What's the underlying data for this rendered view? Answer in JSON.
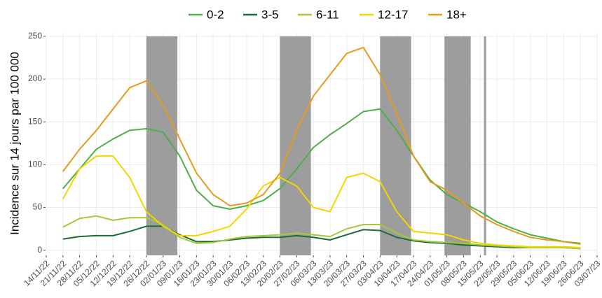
{
  "chart_data": {
    "type": "line",
    "y_label": "Incidence sur 14 jours par 100 000",
    "x": [
      "21/11/22",
      "28/11/22",
      "05/12/22",
      "12/12/22",
      "19/12/22",
      "26/12/22",
      "02/01/23",
      "09/01/23",
      "16/01/23",
      "23/01/23",
      "30/01/23",
      "06/02/23",
      "13/02/23",
      "20/02/23",
      "27/02/23",
      "06/03/23",
      "13/03/23",
      "20/03/23",
      "27/03/23",
      "03/04/23",
      "10/04/23",
      "17/04/23",
      "24/04/23",
      "01/05/23",
      "08/05/23",
      "15/05/23",
      "22/05/23",
      "29/05/23",
      "05/06/23",
      "12/06/23",
      "19/06/23",
      "26/06/23"
    ],
    "series": [
      {
        "name": "0-2",
        "color": "#4daf4a",
        "values": [
          72,
          95,
          118,
          130,
          140,
          142,
          138,
          110,
          70,
          52,
          48,
          52,
          58,
          72,
          95,
          120,
          135,
          148,
          162,
          165,
          140,
          110,
          82,
          65,
          55,
          45,
          33,
          25,
          18,
          14,
          10,
          8
        ]
      },
      {
        "name": "3-5",
        "color": "#1b6b3a",
        "values": [
          13,
          16,
          17,
          17,
          22,
          28,
          28,
          18,
          10,
          10,
          12,
          14,
          15,
          15,
          17,
          15,
          12,
          18,
          24,
          23,
          15,
          11,
          9,
          8,
          6,
          5,
          4,
          3,
          3,
          3,
          3,
          2
        ]
      },
      {
        "name": "6-11",
        "color": "#a6c93a",
        "values": [
          27,
          37,
          40,
          35,
          38,
          38,
          30,
          15,
          8,
          9,
          13,
          16,
          17,
          18,
          20,
          18,
          16,
          25,
          30,
          30,
          20,
          12,
          10,
          9,
          8,
          6,
          5,
          4,
          3,
          3,
          3,
          2
        ]
      },
      {
        "name": "12-17",
        "color": "#f2d600",
        "values": [
          60,
          95,
          110,
          110,
          85,
          45,
          28,
          17,
          17,
          22,
          28,
          48,
          75,
          85,
          75,
          50,
          45,
          85,
          90,
          80,
          45,
          22,
          20,
          18,
          12,
          8,
          6,
          5,
          4,
          4,
          4,
          3
        ]
      },
      {
        "name": "18+",
        "color": "#e69a1e",
        "values": [
          92,
          118,
          140,
          165,
          190,
          198,
          170,
          130,
          90,
          65,
          52,
          55,
          65,
          90,
          140,
          180,
          205,
          230,
          237,
          205,
          160,
          110,
          80,
          70,
          55,
          40,
          30,
          22,
          15,
          12,
          10,
          7
        ]
      }
    ],
    "xlim": [
      "14/11/22",
      "03/07/23"
    ],
    "xticks": [
      "14/11/22",
      "21/11/22",
      "28/11/22",
      "05/12/22",
      "12/12/22",
      "19/12/22",
      "26/12/22",
      "02/01/23",
      "09/01/23",
      "16/01/23",
      "23/01/23",
      "30/01/23",
      "06/02/23",
      "13/02/23",
      "20/02/23",
      "27/02/23",
      "06/03/23",
      "13/03/23",
      "20/03/23",
      "27/03/23",
      "03/04/23",
      "10/04/23",
      "17/04/23",
      "24/04/23",
      "01/05/23",
      "08/05/23",
      "15/05/23",
      "22/05/23",
      "29/05/23",
      "05/06/23",
      "12/06/23",
      "19/06/23",
      "26/06/23",
      "03/07/23"
    ],
    "ylim": [
      -6,
      254
    ],
    "yticks": [
      0,
      50,
      100,
      150,
      200,
      250
    ],
    "grid": true,
    "legend": "top",
    "shaded_periods": [
      {
        "start": "26/12/22",
        "end": "08/01/23"
      },
      {
        "start": "20/02/23",
        "end": "05/03/23"
      },
      {
        "start": "03/04/23",
        "end": "16/04/23"
      },
      {
        "start": "30/04/23",
        "end": "11/05/23"
      }
    ],
    "shade_color": "#8c8c8c",
    "vline": "17/05/23"
  }
}
